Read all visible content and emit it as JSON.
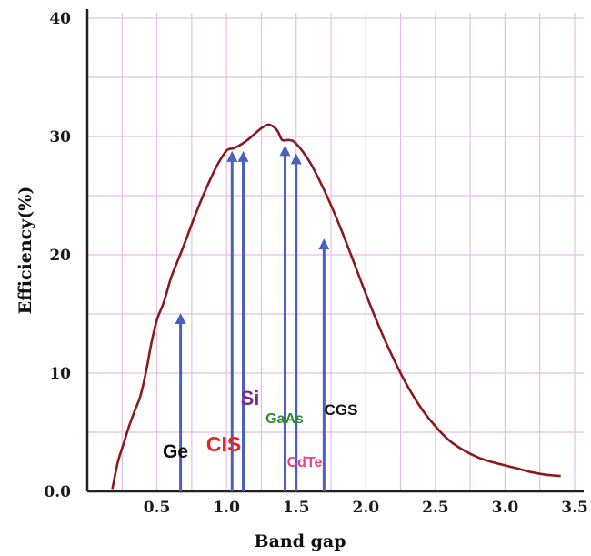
{
  "chart_data": {
    "type": "line",
    "xlabel": "Band gap",
    "ylabel": "Efficiency(%)",
    "xlim": [
      0.0,
      3.5
    ],
    "ylim": [
      0,
      40
    ],
    "x_ticks": [
      0.5,
      1.0,
      1.5,
      2.0,
      2.5,
      3.0,
      3.5
    ],
    "x_tick_labels": [
      "0.5",
      "1.0",
      "1.5",
      "2.0",
      "2.5",
      "3.0",
      "3.5"
    ],
    "y_ticks": [
      0,
      10,
      20,
      30,
      40
    ],
    "y_tick_labels": [
      "0.0",
      "10",
      "20",
      "30",
      "40"
    ],
    "grid": true,
    "grid_color": "#e3bfe6",
    "curve_color": "#8b1a1a",
    "arrow_color": "#4a5fc0",
    "series": [
      {
        "x": [
          0.18,
          0.22,
          0.26,
          0.3,
          0.34,
          0.38,
          0.42,
          0.46,
          0.5,
          0.55,
          0.6,
          0.65,
          0.7,
          0.78,
          0.85,
          0.93,
          1.0,
          1.05,
          1.1,
          1.15,
          1.2,
          1.25,
          1.3,
          1.34,
          1.37,
          1.4,
          1.45,
          1.5,
          1.6,
          1.7,
          1.8,
          1.9,
          2.0,
          2.1,
          2.2,
          2.3,
          2.4,
          2.5,
          2.6,
          2.7,
          2.8,
          2.9,
          3.0,
          3.1,
          3.2,
          3.3,
          3.4
        ],
        "y": [
          0.2,
          2.5,
          4.0,
          5.5,
          6.8,
          8.0,
          10.0,
          12.5,
          14.5,
          16.0,
          18.0,
          19.5,
          21.0,
          23.5,
          25.5,
          27.5,
          28.8,
          29.0,
          29.3,
          29.7,
          30.2,
          30.7,
          31.0,
          30.8,
          30.4,
          29.7,
          29.7,
          29.4,
          27.8,
          25.5,
          22.8,
          19.8,
          16.7,
          13.8,
          11.2,
          8.9,
          7.0,
          5.5,
          4.3,
          3.5,
          2.9,
          2.5,
          2.2,
          1.9,
          1.6,
          1.4,
          1.3
        ]
      }
    ],
    "arrows": [
      {
        "name": "Ge",
        "band_gap": 0.67,
        "efficiency": 15.0
      },
      {
        "name": "CIS",
        "band_gap": 1.04,
        "efficiency": 28.7
      },
      {
        "name": "Si",
        "band_gap": 1.12,
        "efficiency": 28.7
      },
      {
        "name": "GaAs",
        "band_gap": 1.42,
        "efficiency": 29.2
      },
      {
        "name": "CdTe",
        "band_gap": 1.5,
        "efficiency": 28.5
      },
      {
        "name": "CGS",
        "band_gap": 1.7,
        "efficiency": 21.3
      }
    ],
    "material_labels": [
      {
        "text": "Ge",
        "color": "#111111"
      },
      {
        "text": "CIS",
        "color": "#e8231f"
      },
      {
        "text": "Si",
        "color": "#7a2a8c"
      },
      {
        "text": "GaAs",
        "color": "#2e8b2e"
      },
      {
        "text": "CdTe",
        "color": "#e8408a"
      },
      {
        "text": "CGS",
        "color": "#111111"
      }
    ]
  }
}
